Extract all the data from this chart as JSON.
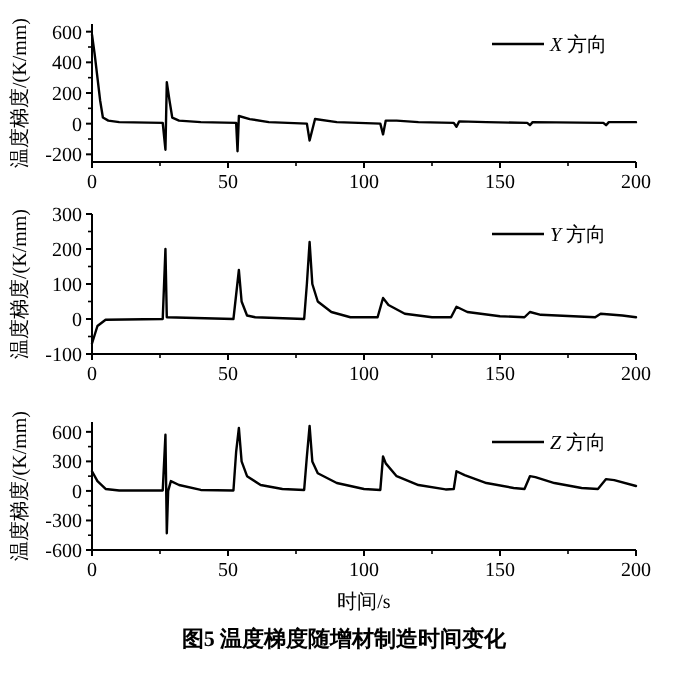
{
  "chart_data": [
    {
      "type": "line",
      "ylabel": "温度梯度/(K/mm)",
      "xlim": [
        0,
        200
      ],
      "xticks": [
        0,
        50,
        100,
        150,
        200
      ],
      "ylim": [
        -250,
        650
      ],
      "yticks": [
        -200,
        0,
        200,
        400,
        600
      ],
      "legend": "top right",
      "series": [
        {
          "name": "*X* 方向",
          "color": "#000000",
          "x": [
            0,
            1,
            3,
            4,
            6,
            10,
            26,
            27,
            27.5,
            28.5,
            29.5,
            32,
            40,
            53,
            53.5,
            54,
            58,
            65,
            79,
            80,
            82,
            90,
            106,
            107,
            108,
            112,
            120,
            133,
            134,
            135,
            145,
            160,
            161,
            162,
            188,
            189,
            190,
            200
          ],
          "values": [
            580,
            450,
            150,
            40,
            20,
            10,
            5,
            -170,
            270,
            150,
            40,
            20,
            10,
            5,
            -180,
            50,
            30,
            10,
            0,
            -110,
            30,
            10,
            0,
            -70,
            20,
            20,
            10,
            5,
            -20,
            15,
            10,
            5,
            -10,
            10,
            5,
            -10,
            10,
            10
          ]
        }
      ]
    },
    {
      "type": "line",
      "ylabel": "温度梯度/(K/mm)",
      "xlim": [
        0,
        200
      ],
      "xticks": [
        0,
        50,
        100,
        150,
        200
      ],
      "ylim": [
        -100,
        300
      ],
      "yticks": [
        -100,
        0,
        100,
        200,
        300
      ],
      "legend": "top right",
      "series": [
        {
          "name": "*Y* 方向",
          "color": "#000000",
          "x": [
            0,
            2,
            5,
            26,
            27,
            27.5,
            52,
            53,
            54,
            55,
            57,
            60,
            78,
            79,
            80,
            81,
            83,
            88,
            95,
            105,
            107,
            109,
            115,
            125,
            132,
            134,
            138,
            150,
            159,
            161,
            165,
            185,
            187,
            195,
            200
          ],
          "values": [
            -70,
            -20,
            -2,
            0,
            200,
            5,
            0,
            70,
            140,
            50,
            10,
            5,
            0,
            100,
            220,
            100,
            50,
            20,
            5,
            5,
            60,
            40,
            15,
            5,
            5,
            35,
            20,
            8,
            5,
            20,
            12,
            5,
            15,
            10,
            5
          ]
        }
      ]
    },
    {
      "type": "line",
      "ylabel": "温度梯度/(K/mm)",
      "xlabel": "时间/s",
      "xlim": [
        0,
        200
      ],
      "xticks": [
        0,
        50,
        100,
        150,
        200
      ],
      "ylim": [
        -600,
        700
      ],
      "yticks": [
        -600,
        -300,
        0,
        300,
        600
      ],
      "legend": "top right",
      "annotations": [
        "图5  温度梯度随增材制造时间变化"
      ],
      "series": [
        {
          "name": "*Z* 方向",
          "color": "#000000",
          "x": [
            0,
            2,
            5,
            10,
            26,
            27,
            27.5,
            28,
            29,
            32,
            40,
            52,
            53,
            54,
            55,
            57,
            62,
            70,
            78,
            79,
            80,
            81,
            83,
            90,
            100,
            106,
            107,
            108,
            112,
            120,
            130,
            133,
            134,
            137,
            145,
            155,
            159,
            161,
            163,
            170,
            180,
            186,
            189,
            192,
            200
          ],
          "values": [
            200,
            100,
            20,
            5,
            5,
            570,
            -430,
            0,
            100,
            60,
            10,
            5,
            400,
            640,
            300,
            150,
            60,
            20,
            10,
            350,
            660,
            300,
            180,
            80,
            20,
            10,
            350,
            280,
            150,
            60,
            15,
            20,
            200,
            160,
            80,
            30,
            20,
            150,
            140,
            80,
            30,
            20,
            120,
            110,
            50
          ]
        }
      ]
    }
  ]
}
